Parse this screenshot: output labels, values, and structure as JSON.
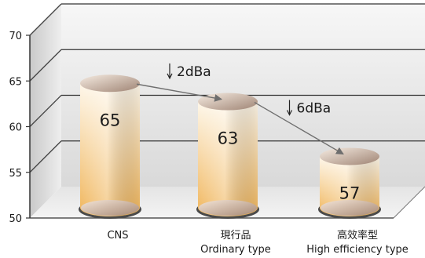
{
  "chart_data": {
    "type": "bar",
    "style": "3d-cylinder",
    "categories": [
      {
        "line1": "CNS",
        "line2": ""
      },
      {
        "line1": "現行品",
        "line2": "Ordinary type"
      },
      {
        "line1": "高效率型",
        "line2": "High efficiency type"
      }
    ],
    "values": [
      65,
      63,
      57
    ],
    "value_labels": [
      "65",
      "63",
      "57"
    ],
    "ylim": [
      50,
      70
    ],
    "yticks": [
      50,
      55,
      60,
      65,
      70
    ],
    "grid": true,
    "annotations": [
      {
        "text": "2dBa",
        "from": 0,
        "to": 1
      },
      {
        "text": "6dBa",
        "from": 1,
        "to": 2
      }
    ],
    "colors": {
      "bar_top": "#fef7ea",
      "bar_bottom": "#f0b55a",
      "cap_light": "#f5ebe1",
      "cap_dark": "#9f8474",
      "arrow": "#777777",
      "wall": "#e6e6e6"
    }
  }
}
